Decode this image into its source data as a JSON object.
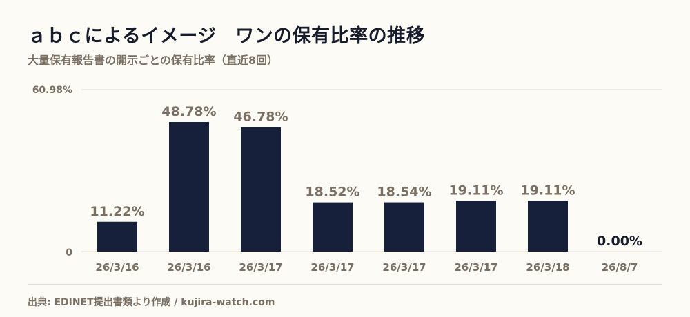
{
  "header": {
    "title": "ａｂｃによるイメージ　ワンの保有比率の推移",
    "subtitle": "大量保有報告書の開示ごとの保有比率（直近8回）"
  },
  "footer": {
    "source": "出典: EDINET提出書類より作成 / kujira-watch.com"
  },
  "colors": {
    "bar": "#16203a",
    "label": "#7a6f62",
    "label_zero": "#161c2c",
    "grid": "#e2dccd"
  },
  "chart_data": {
    "type": "bar",
    "title": "ａｂｃによるイメージ　ワンの保有比率の推移",
    "subtitle": "大量保有報告書の開示ごとの保有比率（直近8回）",
    "categories": [
      "26/3/16",
      "26/3/16",
      "26/3/17",
      "26/3/17",
      "26/3/17",
      "26/3/17",
      "26/3/18",
      "26/8/7"
    ],
    "values": [
      11.22,
      48.78,
      46.78,
      18.52,
      18.54,
      19.11,
      19.11,
      0.0
    ],
    "value_labels": [
      "11.22%",
      "48.78%",
      "46.78%",
      "18.52%",
      "18.54%",
      "19.11%",
      "19.11%",
      "0.00%"
    ],
    "ylim": [
      0,
      60.98
    ],
    "ytick_labels": [
      "0",
      "60.98%"
    ],
    "xlabel": "",
    "ylabel": "",
    "grid": true
  }
}
